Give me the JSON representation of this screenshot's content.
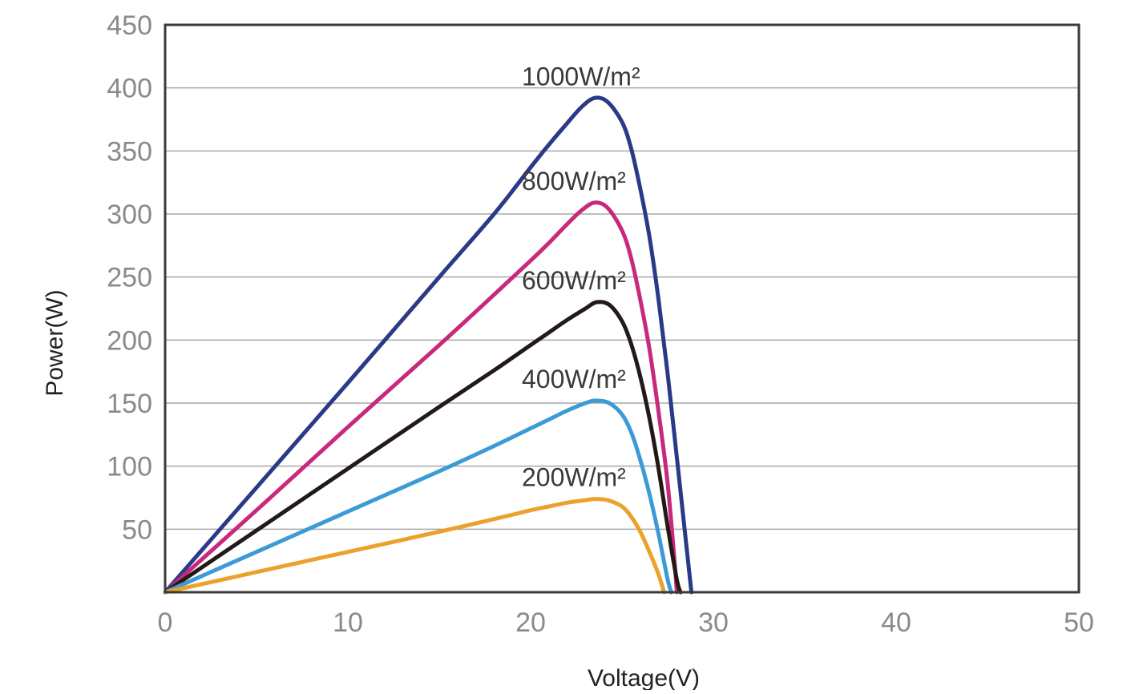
{
  "chart_data": {
    "type": "line",
    "title": "",
    "xlabel": "Voltage(V)",
    "ylabel": "Power(W)",
    "xlim": [
      0,
      50
    ],
    "ylim": [
      0,
      450
    ],
    "xticks": [
      "0",
      "10",
      "20",
      "30",
      "40",
      "50"
    ],
    "yticks": [
      "50",
      "100",
      "150",
      "200",
      "250",
      "300",
      "350",
      "400",
      "450"
    ],
    "grid": "horizontal",
    "series": [
      {
        "name": "1000W/m²",
        "color": "#2b3a87",
        "points": [
          [
            0,
            0
          ],
          [
            5,
            83
          ],
          [
            10,
            166
          ],
          [
            15,
            250
          ],
          [
            18,
            300
          ],
          [
            20,
            337
          ],
          [
            21,
            355
          ],
          [
            22,
            372
          ],
          [
            22.8,
            385
          ],
          [
            23.5,
            392
          ],
          [
            24.2,
            389
          ],
          [
            25,
            373
          ],
          [
            25.5,
            352
          ],
          [
            26,
            320
          ],
          [
            26.5,
            282
          ],
          [
            27,
            232
          ],
          [
            27.5,
            173
          ],
          [
            28,
            107
          ],
          [
            28.5,
            40
          ],
          [
            28.8,
            0
          ]
        ]
      },
      {
        "name": "800W/m²",
        "color": "#c8297c",
        "points": [
          [
            0,
            0
          ],
          [
            5,
            65
          ],
          [
            10,
            131
          ],
          [
            15,
            196
          ],
          [
            18,
            236
          ],
          [
            20,
            263
          ],
          [
            21,
            277
          ],
          [
            22,
            292
          ],
          [
            22.8,
            303
          ],
          [
            23.5,
            309
          ],
          [
            24.2,
            305
          ],
          [
            25,
            287
          ],
          [
            25.5,
            265
          ],
          [
            26,
            232
          ],
          [
            26.5,
            193
          ],
          [
            27,
            143
          ],
          [
            27.5,
            86
          ],
          [
            27.9,
            20
          ],
          [
            28,
            0
          ]
        ]
      },
      {
        "name": "600W/m²",
        "color": "#221a16",
        "points": [
          [
            0,
            0
          ],
          [
            5,
            49
          ],
          [
            10,
            98
          ],
          [
            15,
            147
          ],
          [
            18,
            176
          ],
          [
            20,
            196
          ],
          [
            21,
            206
          ],
          [
            22,
            216
          ],
          [
            23,
            225
          ],
          [
            23.6,
            230
          ],
          [
            24.3,
            228
          ],
          [
            25,
            215
          ],
          [
            25.5,
            197
          ],
          [
            26,
            171
          ],
          [
            26.5,
            138
          ],
          [
            27,
            98
          ],
          [
            27.5,
            52
          ],
          [
            28,
            10
          ],
          [
            28.2,
            0
          ]
        ]
      },
      {
        "name": "400W/m²",
        "color": "#3c9bd6",
        "points": [
          [
            0,
            0
          ],
          [
            5,
            32
          ],
          [
            10,
            64
          ],
          [
            15,
            96
          ],
          [
            18,
            116
          ],
          [
            20,
            130
          ],
          [
            21,
            137
          ],
          [
            22,
            144
          ],
          [
            23,
            150
          ],
          [
            23.6,
            152
          ],
          [
            24.3,
            150
          ],
          [
            25,
            141
          ],
          [
            25.5,
            127
          ],
          [
            26,
            105
          ],
          [
            26.5,
            78
          ],
          [
            27,
            46
          ],
          [
            27.5,
            10
          ],
          [
            27.7,
            0
          ]
        ]
      },
      {
        "name": "200W/m²",
        "color": "#eaa22c",
        "points": [
          [
            0,
            0
          ],
          [
            5,
            16
          ],
          [
            10,
            32
          ],
          [
            15,
            48
          ],
          [
            18,
            58
          ],
          [
            20,
            65
          ],
          [
            21,
            68
          ],
          [
            22,
            71
          ],
          [
            23,
            73
          ],
          [
            23.5,
            74
          ],
          [
            24.2,
            73
          ],
          [
            25,
            68
          ],
          [
            25.5,
            60
          ],
          [
            26,
            48
          ],
          [
            26.5,
            32
          ],
          [
            27,
            14
          ],
          [
            27.3,
            0
          ]
        ]
      }
    ]
  }
}
